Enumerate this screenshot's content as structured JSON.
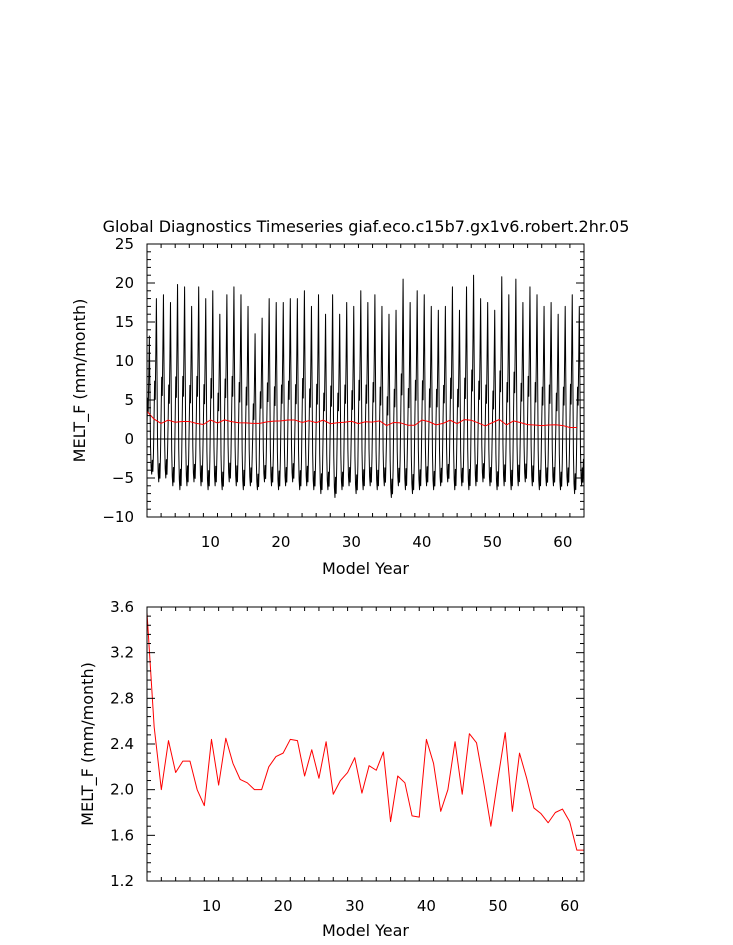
{
  "title": "Global Diagnostics Timeseries giaf.eco.c15b7.gx1v6.robert.2hr.05",
  "colors": {
    "monthly": "#000000",
    "annual": "#ff0000",
    "zero_line": "#000000",
    "frame": "#000000"
  },
  "chart_data": [
    {
      "type": "line",
      "xlabel": "Model Year",
      "ylabel": "MELT_F (mm/month)",
      "xlim": [
        1,
        63
      ],
      "ylim": [
        -10,
        25
      ],
      "xticks": [
        10,
        20,
        30,
        40,
        50,
        60
      ],
      "yticks": [
        -10,
        -5,
        0,
        5,
        10,
        15,
        20,
        25
      ],
      "ytick_labels": [
        "−10",
        "−5",
        "0",
        "5",
        "10",
        "15",
        "20",
        "25"
      ],
      "grid": false,
      "zero_line": true,
      "series": [
        {
          "key": "monthly",
          "color": "#000000",
          "approximate": true,
          "annual_peaks": [
            13.2,
            18.0,
            18.5,
            17.5,
            19.8,
            19.5,
            17.0,
            19.5,
            18.0,
            19.0,
            16.0,
            18.5,
            19.5,
            18.5,
            17.0,
            13.5,
            15.5,
            18.0,
            17.5,
            17.5,
            18.0,
            18.0,
            19.0,
            17.0,
            18.5,
            16.0,
            18.5,
            16.0,
            17.5,
            17.0,
            19.0,
            17.5,
            18.5,
            17.0,
            16.0,
            16.5,
            20.5,
            17.5,
            19.0,
            18.5,
            17.0,
            16.5,
            17.0,
            19.5,
            16.5,
            19.5,
            21.0,
            18.0,
            17.5,
            16.5,
            20.8,
            18.5,
            20.5,
            17.5,
            19.5,
            18.5,
            17.0,
            17.5,
            16.0,
            17.0,
            18.5,
            17.0
          ],
          "annual_troughs": [
            -4.5,
            -5.5,
            -5.0,
            -6.0,
            -6.5,
            -6.0,
            -5.5,
            -6.0,
            -6.5,
            -6.0,
            -6.5,
            -5.5,
            -6.0,
            -6.5,
            -6.0,
            -6.5,
            -5.5,
            -6.0,
            -6.5,
            -6.0,
            -5.5,
            -6.5,
            -6.0,
            -6.5,
            -7.0,
            -6.5,
            -7.5,
            -6.5,
            -6.0,
            -7.0,
            -6.5,
            -6.0,
            -6.5,
            -6.0,
            -7.5,
            -6.0,
            -6.5,
            -7.0,
            -6.5,
            -6.0,
            -6.5,
            -6.0,
            -5.5,
            -6.5,
            -6.0,
            -6.5,
            -6.0,
            -5.5,
            -6.0,
            -6.5,
            -6.0,
            -6.5,
            -6.0,
            -5.5,
            -6.0,
            -6.5,
            -6.0,
            -6.0,
            -6.5,
            -6.0,
            -7.0,
            -6.0
          ]
        },
        {
          "key": "annual",
          "color": "#ff0000",
          "x": [
            1,
            2,
            3,
            4,
            5,
            6,
            7,
            8,
            9,
            10,
            11,
            12,
            13,
            14,
            15,
            16,
            17,
            18,
            19,
            20,
            21,
            22,
            23,
            24,
            25,
            26,
            27,
            28,
            29,
            30,
            31,
            32,
            33,
            34,
            35,
            36,
            37,
            38,
            39,
            40,
            41,
            42,
            43,
            44,
            45,
            46,
            47,
            48,
            49,
            50,
            51,
            52,
            53,
            54,
            55,
            56,
            57,
            58,
            59,
            60,
            61,
            62
          ],
          "values": [
            3.55,
            2.55,
            2.0,
            2.43,
            2.15,
            2.25,
            2.25,
            2.0,
            1.86,
            2.44,
            2.04,
            2.45,
            2.23,
            2.09,
            2.06,
            2.0,
            2.0,
            2.2,
            2.29,
            2.32,
            2.44,
            2.43,
            2.12,
            2.35,
            2.1,
            2.42,
            1.96,
            2.08,
            2.15,
            2.28,
            1.97,
            2.21,
            2.17,
            2.33,
            1.72,
            2.12,
            2.06,
            1.77,
            1.76,
            2.44,
            2.23,
            1.81,
            2.0,
            2.42,
            1.96,
            2.49,
            2.41,
            2.06,
            1.68,
            2.1,
            2.5,
            1.81,
            2.32,
            2.1,
            1.84,
            1.79,
            1.71,
            1.8,
            1.83,
            1.72,
            1.47,
            1.47
          ]
        }
      ]
    },
    {
      "type": "line",
      "xlabel": "Model Year",
      "ylabel": "MELT_F (mm/month)",
      "xlim": [
        1,
        62
      ],
      "ylim": [
        1.2,
        3.6
      ],
      "xticks": [
        10,
        20,
        30,
        40,
        50,
        60
      ],
      "yticks": [
        1.2,
        1.6,
        2.0,
        2.4,
        2.8,
        3.2,
        3.6
      ],
      "ytick_labels": [
        "1.2",
        "1.6",
        "2.0",
        "2.4",
        "2.8",
        "3.2",
        "3.6"
      ],
      "grid": false,
      "series": [
        {
          "key": "annual",
          "color": "#ff0000",
          "x": [
            1,
            2,
            3,
            4,
            5,
            6,
            7,
            8,
            9,
            10,
            11,
            12,
            13,
            14,
            15,
            16,
            17,
            18,
            19,
            20,
            21,
            22,
            23,
            24,
            25,
            26,
            27,
            28,
            29,
            30,
            31,
            32,
            33,
            34,
            35,
            36,
            37,
            38,
            39,
            40,
            41,
            42,
            43,
            44,
            45,
            46,
            47,
            48,
            49,
            50,
            51,
            52,
            53,
            54,
            55,
            56,
            57,
            58,
            59,
            60,
            61,
            62
          ],
          "values": [
            3.55,
            2.55,
            2.0,
            2.43,
            2.15,
            2.25,
            2.25,
            2.0,
            1.86,
            2.44,
            2.04,
            2.45,
            2.23,
            2.09,
            2.06,
            2.0,
            2.0,
            2.2,
            2.29,
            2.32,
            2.44,
            2.43,
            2.12,
            2.35,
            2.1,
            2.42,
            1.96,
            2.08,
            2.15,
            2.28,
            1.97,
            2.21,
            2.17,
            2.33,
            1.72,
            2.12,
            2.06,
            1.77,
            1.76,
            2.44,
            2.23,
            1.81,
            2.0,
            2.42,
            1.96,
            2.49,
            2.41,
            2.06,
            1.68,
            2.1,
            2.5,
            1.81,
            2.32,
            2.1,
            1.84,
            1.79,
            1.71,
            1.8,
            1.83,
            1.72,
            1.47,
            1.47
          ]
        }
      ]
    }
  ]
}
